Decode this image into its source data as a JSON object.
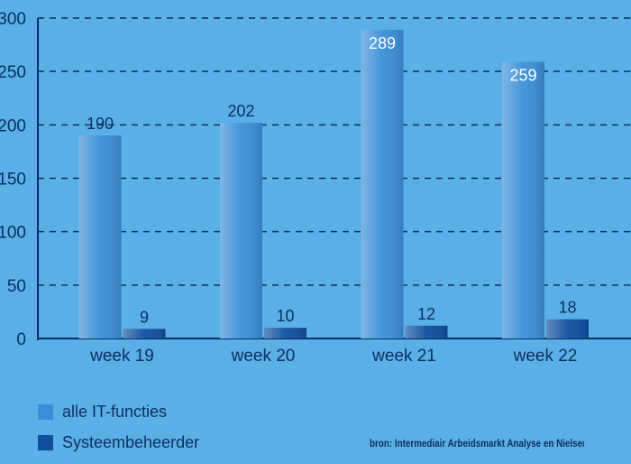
{
  "chart_data": {
    "type": "bar",
    "categories": [
      "week 19",
      "week 20",
      "week 21",
      "week 22"
    ],
    "series": [
      {
        "name": "alle IT-functies",
        "values": [
          190,
          202,
          289,
          259
        ],
        "color": "#3a8fd8"
      },
      {
        "name": "Systeembeheerder",
        "values": [
          9,
          10,
          12,
          18
        ],
        "color": "#0f4f9e"
      }
    ],
    "yticks": [
      "0",
      "50",
      "100",
      "150",
      "200",
      "250",
      "300"
    ],
    "ylim": [
      0,
      300
    ],
    "grid": true,
    "legend_position": "bottom-left"
  },
  "colors": {
    "background": "#5ab0e6",
    "text": "#0b2f63",
    "gridline": "#0b2f63"
  },
  "source": "bron: Intermediair Arbeidsmarkt Analyse en Nielsen Media Research"
}
